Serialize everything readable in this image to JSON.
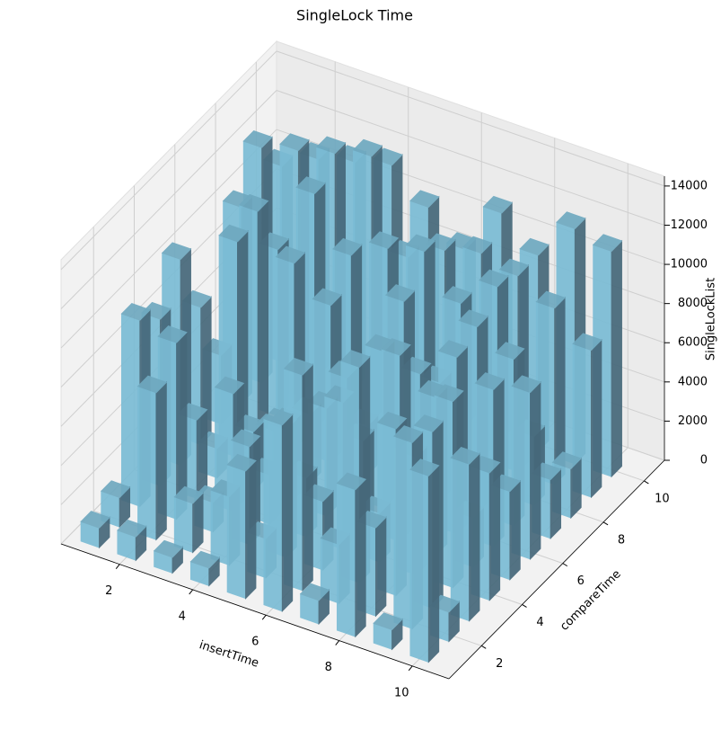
{
  "chart_data": {
    "type": "bar3d",
    "title": "SingleLock Time",
    "xlabel": "insertTime",
    "ylabel": "compareTime",
    "zlabel": "SingleLockList",
    "x": [
      1,
      2,
      3,
      4,
      5,
      6,
      7,
      8,
      9,
      10
    ],
    "y": [
      1,
      2,
      3,
      4,
      5,
      6,
      7,
      8,
      9,
      10
    ],
    "values": [
      [
        1000,
        1500,
        9500,
        8500,
        10500,
        7000,
        3500,
        10000,
        12000,
        10000
      ],
      [
        1200,
        7500,
        9000,
        4000,
        1500,
        11000,
        11500,
        8500,
        12500,
        11000
      ],
      [
        800,
        2500,
        1500,
        6000,
        3000,
        2000,
        9500,
        12000,
        13000,
        11500
      ],
      [
        900,
        3500,
        5000,
        2500,
        4000,
        3500,
        8000,
        9500,
        13500,
        12000
      ],
      [
        6500,
        2000,
        6500,
        3000,
        5500,
        6000,
        2500,
        10500,
        9000,
        10500
      ],
      [
        9500,
        11000,
        3500,
        7500,
        4500,
        8000,
        9500,
        11000,
        10000,
        9000
      ],
      [
        1200,
        3000,
        11000,
        2500,
        9500,
        7500,
        6000,
        9000,
        10500,
        11500
      ],
      [
        7500,
        4500,
        8500,
        6000,
        8000,
        9000,
        9500,
        10500,
        10000,
        10000
      ],
      [
        1000,
        9500,
        9000,
        9500,
        2500,
        8000,
        8500,
        3500,
        9000,
        12000
      ],
      [
        9500,
        1500,
        8000,
        6500,
        4500,
        8500,
        3000,
        2500,
        7500,
        11500
      ]
    ],
    "color": "#7bbcd5",
    "xlim": [
      0.4,
      11
    ],
    "ylim": [
      0.4,
      11
    ],
    "zlim": [
      0,
      14500
    ],
    "xticks": [
      2,
      4,
      6,
      8,
      10
    ],
    "yticks": [
      2,
      4,
      6,
      8,
      10
    ],
    "zticks": [
      0,
      2000,
      4000,
      6000,
      8000,
      10000,
      12000,
      14000
    ],
    "grid": true
  }
}
